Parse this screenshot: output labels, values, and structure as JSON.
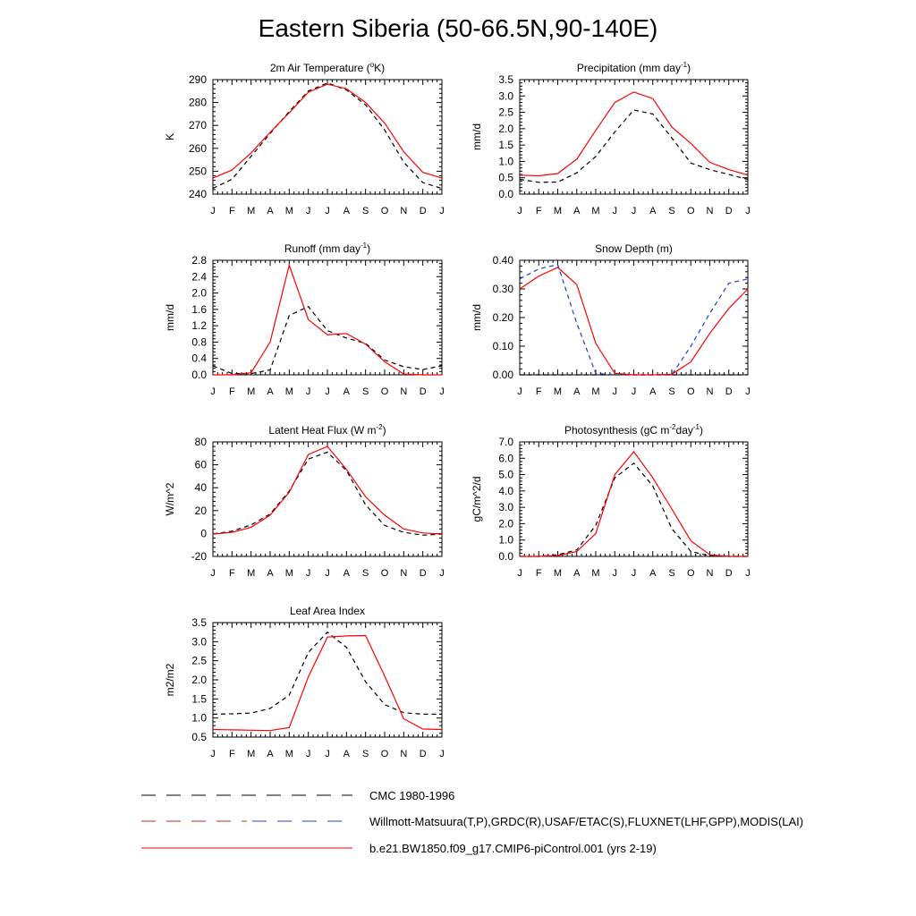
{
  "title": "Eastern Siberia (50-66.5N,90-140E)",
  "months": [
    "J",
    "F",
    "M",
    "A",
    "M",
    "J",
    "J",
    "A",
    "S",
    "O",
    "N",
    "D",
    "J"
  ],
  "legend": [
    {
      "label": "CMC 1980-1996",
      "color": "#000000",
      "dash": true
    },
    {
      "label": "Willmott-Matsuura(T,P),GRDC(R),USAF/ETAC(S),FLUXNET(LHF,GPP),MODIS(LAI)",
      "color": "#000000",
      "color2": "#1f3fd0",
      "dash": true
    },
    {
      "label": "b.e21.BW1850.f09_g17.CMIP6-piControl.001 (yrs 2-19)",
      "color": "#ff0000",
      "dash": false
    }
  ],
  "chart_data": [
    {
      "type": "line",
      "title": "2m Air Temperature (",
      "title_sup": "o",
      "title_after": "K)",
      "ylabel": "K",
      "ylim": [
        240,
        290
      ],
      "yticks": [
        240,
        250,
        260,
        270,
        280,
        290
      ],
      "tick_labels": [
        "240",
        "250",
        "260",
        "270",
        "280",
        "290"
      ],
      "series": [
        {
          "color": "#000000",
          "dash": true,
          "values": [
            242.5,
            246.5,
            256.5,
            266.5,
            276,
            285,
            288.5,
            285.5,
            279,
            268,
            254,
            245,
            242.5
          ]
        },
        {
          "color": "#ff0000",
          "dash": false,
          "values": [
            247,
            250.5,
            258,
            267,
            275.5,
            284.5,
            288,
            286,
            280,
            271,
            258.5,
            249.5,
            247
          ]
        }
      ]
    },
    {
      "type": "line",
      "title": "Precipitation (mm day",
      "title_sup": "-1",
      "title_after": ")",
      "ylabel": "mm/d",
      "ylim": [
        0,
        3.5
      ],
      "yticks": [
        0,
        0.5,
        1,
        1.5,
        2,
        2.5,
        3,
        3.5
      ],
      "tick_labels": [
        "0.0",
        "0.5",
        "1.0",
        "1.5",
        "2.0",
        "2.5",
        "3.0",
        "3.5"
      ],
      "series": [
        {
          "color": "#000000",
          "dash": true,
          "values": [
            0.45,
            0.36,
            0.37,
            0.65,
            1.15,
            1.9,
            2.57,
            2.45,
            1.72,
            0.95,
            0.75,
            0.6,
            0.45
          ]
        },
        {
          "color": "#ff0000",
          "dash": false,
          "values": [
            0.58,
            0.56,
            0.63,
            1.07,
            1.95,
            2.8,
            3.12,
            2.92,
            2.05,
            1.55,
            0.97,
            0.75,
            0.58
          ]
        }
      ]
    },
    {
      "type": "line",
      "title": "Runoff (mm day",
      "title_sup": "-1",
      "title_after": ")",
      "ylabel": "mm/d",
      "ylim": [
        0,
        2.8
      ],
      "yticks": [
        0,
        0.4,
        0.8,
        1.2,
        1.6,
        2,
        2.4,
        2.8
      ],
      "tick_labels": [
        "0.0",
        "0.4",
        "0.8",
        "1.2",
        "1.6",
        "2.0",
        "2.4",
        "2.8"
      ],
      "series": [
        {
          "color": "#000000",
          "dash": true,
          "values": [
            0.22,
            0.03,
            0.03,
            0.12,
            1.45,
            1.67,
            1.08,
            0.9,
            0.77,
            0.36,
            0.2,
            0.13,
            0.22
          ]
        },
        {
          "color": "#ff0000",
          "dash": false,
          "values": [
            0,
            0,
            0.05,
            0.8,
            2.68,
            1.35,
            0.98,
            1.01,
            0.75,
            0.32,
            0.02,
            0,
            0
          ]
        }
      ]
    },
    {
      "type": "line",
      "title": "Snow Depth (m)",
      "title_sup": "",
      "title_after": "",
      "ylabel": "mm/d",
      "ylim": [
        0,
        0.4
      ],
      "yticks": [
        0,
        0.1,
        0.2,
        0.3,
        0.4
      ],
      "tick_labels": [
        "0.00",
        "0.10",
        "0.20",
        "0.30",
        "0.40"
      ],
      "series": [
        {
          "color": "#000000",
          "dash": true,
          "values": [
            0,
            0,
            0,
            0,
            0,
            0,
            0,
            0,
            0,
            0,
            0,
            0,
            0
          ]
        },
        {
          "color": "#1f3fd0",
          "dash": true,
          "values": [
            0.335,
            0.37,
            0.385,
            0.18,
            0.005,
            0,
            0,
            0,
            0,
            0.1,
            0.215,
            0.32,
            0.335
          ]
        },
        {
          "color": "#ff0000",
          "dash": false,
          "values": [
            0.3,
            0.345,
            0.375,
            0.315,
            0.11,
            0.005,
            0,
            0,
            0.002,
            0.045,
            0.145,
            0.232,
            0.3
          ]
        }
      ]
    },
    {
      "type": "line",
      "title": "Latent Heat Flux (W m",
      "title_sup": "-2",
      "title_after": ")",
      "ylabel": "W/m^2",
      "ylim": [
        -20,
        80
      ],
      "yticks": [
        -20,
        0,
        20,
        40,
        60,
        80
      ],
      "tick_labels": [
        "-20",
        "0",
        "20",
        "40",
        "60",
        "80"
      ],
      "series": [
        {
          "color": "#000000",
          "dash": true,
          "values": [
            -0.5,
            2,
            7.5,
            17,
            37,
            65,
            71,
            55,
            25,
            7,
            1,
            -1.5,
            -0.5
          ]
        },
        {
          "color": "#ff0000",
          "dash": false,
          "values": [
            -0.5,
            1,
            5.5,
            16,
            36,
            69,
            76,
            56,
            32,
            16,
            4,
            0.5,
            -0.5
          ]
        }
      ]
    },
    {
      "type": "line",
      "title": "Photosynthesis (gC m",
      "title_sup": "-2",
      "title_after": "day",
      "title_sup2": "-1",
      "title_after2": ")",
      "ylabel": "gC/m^2/d",
      "ylim": [
        0,
        7
      ],
      "yticks": [
        0,
        1,
        2,
        3,
        4,
        5,
        6,
        7
      ],
      "tick_labels": [
        "0.0",
        "1.0",
        "2.0",
        "3.0",
        "4.0",
        "5.0",
        "6.0",
        "7.0"
      ],
      "series": [
        {
          "color": "#000000",
          "dash": true,
          "values": [
            0,
            0,
            0.1,
            0.4,
            1.9,
            4.8,
            5.7,
            4.3,
            1.7,
            0.3,
            0.04,
            0,
            0
          ]
        },
        {
          "color": "#ff0000",
          "dash": false,
          "values": [
            0,
            0,
            0.05,
            0.3,
            1.4,
            5,
            6.4,
            4.8,
            2.9,
            0.95,
            0.1,
            0,
            0
          ]
        }
      ]
    },
    {
      "type": "line",
      "title": "Leaf Area Index",
      "title_sup": "",
      "title_after": "",
      "ylabel": "m2/m2",
      "ylim": [
        0.5,
        3.5
      ],
      "yticks": [
        0.5,
        1,
        1.5,
        2,
        2.5,
        3,
        3.5
      ],
      "tick_labels": [
        "0.5",
        "1.0",
        "1.5",
        "2.0",
        "2.5",
        "3.0",
        "3.5"
      ],
      "series": [
        {
          "color": "#000000",
          "dash": true,
          "values": [
            1.1,
            1.11,
            1.13,
            1.25,
            1.6,
            2.72,
            3.25,
            2.85,
            1.95,
            1.35,
            1.14,
            1.1,
            1.1
          ]
        },
        {
          "color": "#ff0000",
          "dash": false,
          "values": [
            0.7,
            0.69,
            0.68,
            0.67,
            0.75,
            2.08,
            3.12,
            3.15,
            3.16,
            2.1,
            0.98,
            0.71,
            0.7
          ]
        }
      ]
    }
  ]
}
